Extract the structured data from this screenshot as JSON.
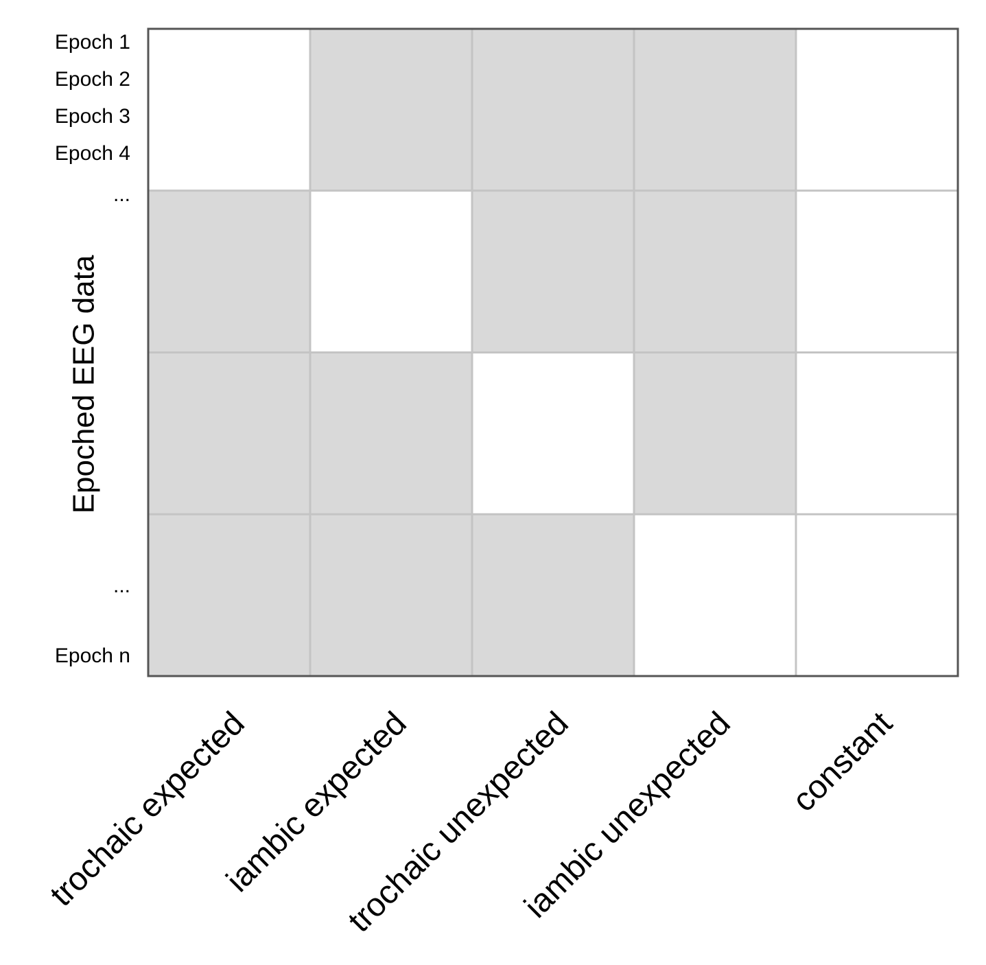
{
  "y_axis_label": "Epoched EEG data",
  "row_labels": [
    "Epoch 1",
    "Epoch 2",
    "Epoch 3",
    "Epoch 4",
    "...",
    "...",
    "Epoch n"
  ],
  "columns": [
    "trochaic expected",
    "iambic expected",
    "trochaic unexpected",
    "iambic unexpected",
    "constant"
  ],
  "matrix": [
    [
      1,
      0,
      0,
      0,
      1
    ],
    [
      0,
      1,
      0,
      0,
      1
    ],
    [
      0,
      0,
      1,
      0,
      1
    ],
    [
      0,
      0,
      0,
      1,
      1
    ]
  ],
  "cell_colors": [
    "#d9d9d9",
    "#ffffff"
  ]
}
